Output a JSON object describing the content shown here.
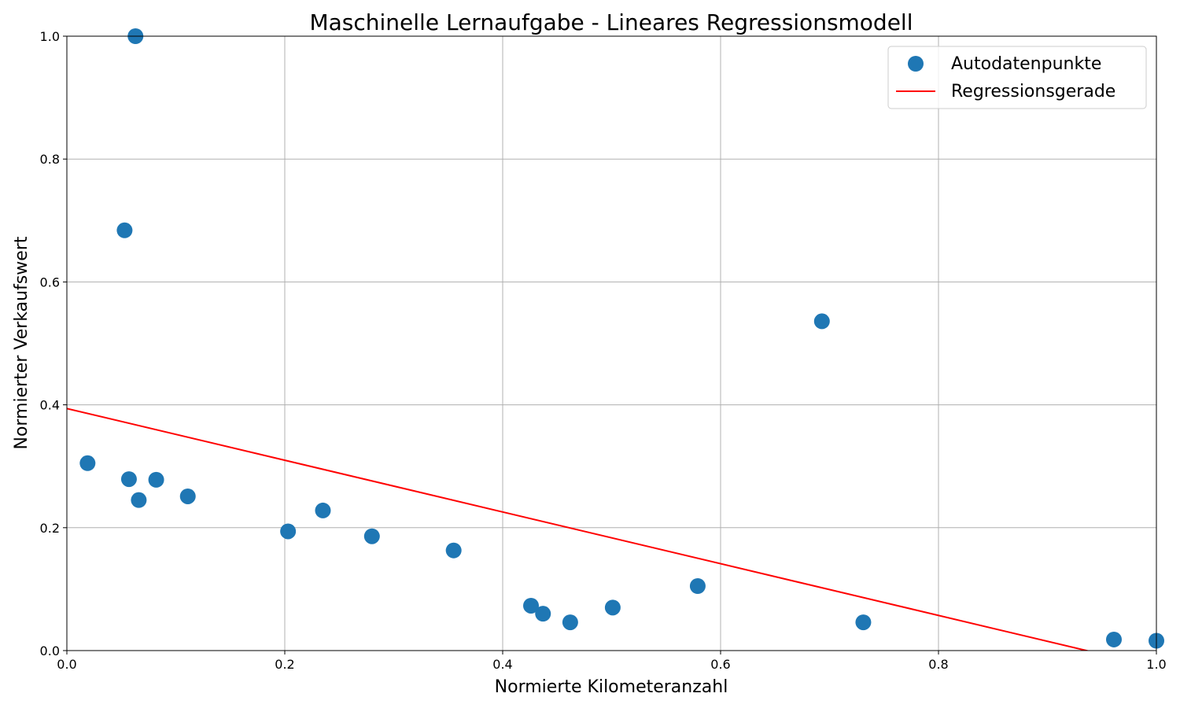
{
  "chart_data": {
    "type": "scatter",
    "title": "Maschinelle Lernaufgabe - Lineares Regressionsmodell",
    "xlabel": "Normierte Kilometeranzahl",
    "ylabel": "Normierter Verkaufswert",
    "xlim": [
      0.0,
      1.0
    ],
    "ylim": [
      0.0,
      1.0
    ],
    "xticks": [
      "0.0",
      "0.2",
      "0.4",
      "0.6",
      "0.8",
      "1.0"
    ],
    "yticks": [
      "0.0",
      "0.2",
      "0.4",
      "0.6",
      "0.8",
      "1.0"
    ],
    "grid": true,
    "legend_position": "top-right",
    "series": [
      {
        "name": "Autodatenpunkte",
        "kind": "scatter",
        "color": "#1f77b4",
        "points": [
          {
            "x": 0.063,
            "y": 1.0
          },
          {
            "x": 0.053,
            "y": 0.684
          },
          {
            "x": 0.019,
            "y": 0.305
          },
          {
            "x": 0.057,
            "y": 0.279
          },
          {
            "x": 0.082,
            "y": 0.278
          },
          {
            "x": 0.066,
            "y": 0.245
          },
          {
            "x": 0.111,
            "y": 0.251
          },
          {
            "x": 0.203,
            "y": 0.194
          },
          {
            "x": 0.235,
            "y": 0.228
          },
          {
            "x": 0.28,
            "y": 0.186
          },
          {
            "x": 0.355,
            "y": 0.163
          },
          {
            "x": 0.426,
            "y": 0.073
          },
          {
            "x": 0.437,
            "y": 0.06
          },
          {
            "x": 0.462,
            "y": 0.046
          },
          {
            "x": 0.501,
            "y": 0.07
          },
          {
            "x": 0.579,
            "y": 0.105
          },
          {
            "x": 0.693,
            "y": 0.536
          },
          {
            "x": 0.731,
            "y": 0.046
          },
          {
            "x": 0.961,
            "y": 0.018
          },
          {
            "x": 1.0,
            "y": 0.016
          }
        ]
      },
      {
        "name": "Regressionsgerade",
        "kind": "line",
        "color": "#ff0000",
        "x": [
          0.0,
          1.0
        ],
        "y": [
          0.394,
          -0.027
        ]
      }
    ]
  }
}
